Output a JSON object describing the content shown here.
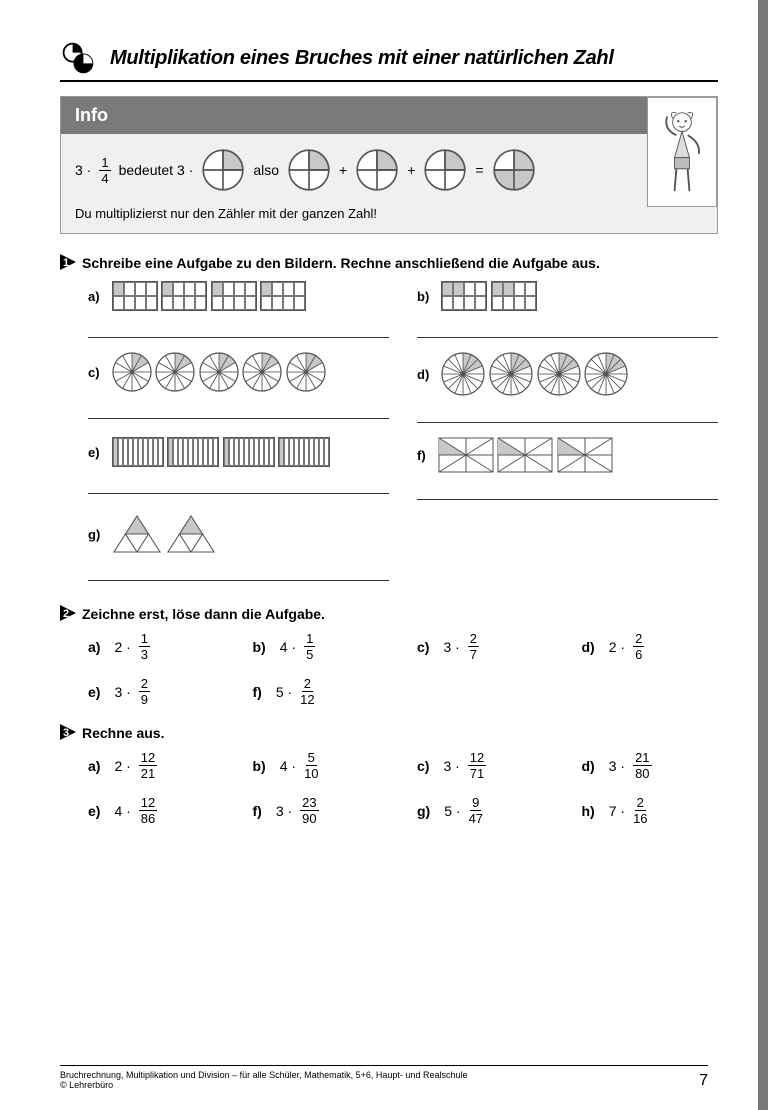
{
  "header": {
    "title": "Multiplikation eines Bruches mit einer natürlichen Zahl"
  },
  "info": {
    "label": "Info",
    "eq_prefix": "3 ·",
    "eq_frac": {
      "num": "1",
      "den": "4"
    },
    "eq_bedeutet": "bedeutet  3 ·",
    "eq_also": "also",
    "plus": "+",
    "equals": "=",
    "footer": "Du multiplizierst nur den Zähler mit der ganzen Zahl!",
    "pie": {
      "stroke": "#555555",
      "fill_shaded": "#c8c8c8",
      "fill_empty": "#ffffff",
      "result_fill": "#c8c8c8"
    }
  },
  "task1": {
    "title": "Schreibe eine Aufgabe zu den Bildern. Rechne anschließend die Aufgabe aus.",
    "items": {
      "a": {
        "label": "a)",
        "type": "rect_grid",
        "rows": 2,
        "cols": 4,
        "shaded": [
          0
        ],
        "count": 4
      },
      "b": {
        "label": "b)",
        "type": "rect_grid",
        "rows": 2,
        "cols": 4,
        "shaded": [
          0,
          1
        ],
        "count": 2
      },
      "c": {
        "label": "c)",
        "type": "pie",
        "slices": 12,
        "shaded": 2,
        "count": 5
      },
      "d": {
        "label": "d)",
        "type": "pie",
        "slices": 16,
        "shaded": 3,
        "count": 4
      },
      "e": {
        "label": "e)",
        "type": "rect_grid",
        "rows": 1,
        "cols": 10,
        "shaded": [
          0
        ],
        "count": 4
      },
      "f": {
        "label": "f)",
        "type": "x_rect",
        "parts": 8,
        "shaded": 1,
        "count": 3
      },
      "g": {
        "label": "g)",
        "type": "triangle",
        "parts": 4,
        "shaded": 1,
        "count": 2
      }
    }
  },
  "task2": {
    "title": "Zeichne erst, löse dann die Aufgabe.",
    "items": [
      {
        "label": "a)",
        "whole": "2",
        "num": "1",
        "den": "3"
      },
      {
        "label": "b)",
        "whole": "4",
        "num": "1",
        "den": "5"
      },
      {
        "label": "c)",
        "whole": "3",
        "num": "2",
        "den": "7"
      },
      {
        "label": "d)",
        "whole": "2",
        "num": "2",
        "den": "6"
      },
      {
        "label": "e)",
        "whole": "3",
        "num": "2",
        "den": "9"
      },
      {
        "label": "f)",
        "whole": "5",
        "num": "2",
        "den": "12"
      }
    ]
  },
  "task3": {
    "title": "Rechne aus.",
    "items": [
      {
        "label": "a)",
        "whole": "2",
        "num": "12",
        "den": "21"
      },
      {
        "label": "b)",
        "whole": "4",
        "num": "5",
        "den": "10"
      },
      {
        "label": "c)",
        "whole": "3",
        "num": "12",
        "den": "71"
      },
      {
        "label": "d)",
        "whole": "3",
        "num": "21",
        "den": "80"
      },
      {
        "label": "e)",
        "whole": "4",
        "num": "12",
        "den": "86"
      },
      {
        "label": "f)",
        "whole": "3",
        "num": "23",
        "den": "90"
      },
      {
        "label": "g)",
        "whole": "5",
        "num": "9",
        "den": "47"
      },
      {
        "label": "h)",
        "whole": "7",
        "num": "2",
        "den": "16"
      }
    ]
  },
  "footer": {
    "line1": "Bruchrechnung, Multiplikation und Division – für alle Schüler, Mathematik, 5+6, Haupt- und Realschule",
    "line2": "© Lehrerbüro",
    "page": "7"
  },
  "colors": {
    "side_bar": "#787878",
    "grid_line": "#777777",
    "shade": "#c8c8c8",
    "text": "#000000"
  },
  "dot": "·"
}
